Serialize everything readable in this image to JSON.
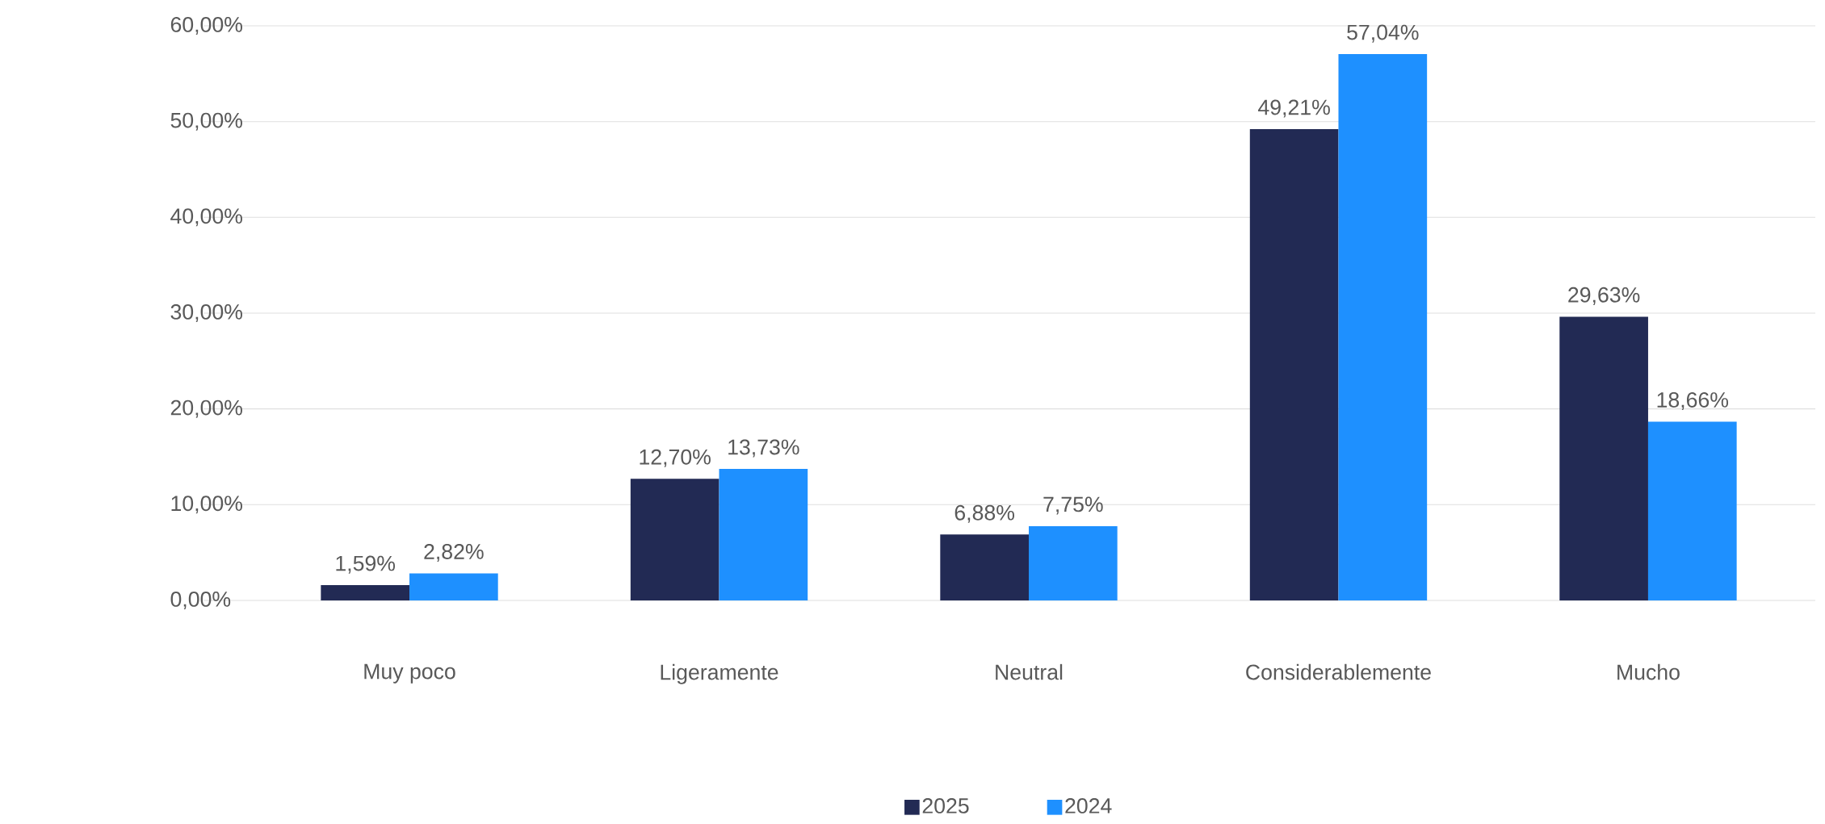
{
  "chart_data": {
    "type": "bar",
    "categories": [
      "Muy poco",
      "Ligeramente",
      "Neutral",
      "Considerablemente",
      "Mucho"
    ],
    "series": [
      {
        "name": "2025",
        "color": "#222a54",
        "values": [
          1.59,
          12.7,
          6.88,
          49.21,
          29.63
        ],
        "value_labels": [
          "1,59%",
          "12,70%",
          "6,88%",
          "49,21%",
          "29,63%"
        ]
      },
      {
        "name": "2024",
        "color": "#1e90ff",
        "values": [
          2.82,
          13.73,
          7.75,
          57.04,
          18.66
        ],
        "value_labels": [
          "2,82%",
          "13,73%",
          "7,75%",
          "57,04%",
          "18,66%"
        ]
      }
    ],
    "ylim": [
      0,
      60
    ],
    "yticks": [
      {
        "value": 0,
        "label": "0,00%"
      },
      {
        "value": 10,
        "label": "10,00%"
      },
      {
        "value": 20,
        "label": "20,00%"
      },
      {
        "value": 30,
        "label": "30,00%"
      },
      {
        "value": 40,
        "label": "40,00%"
      },
      {
        "value": 50,
        "label": "50,00%"
      },
      {
        "value": 60,
        "label": "60,00%"
      }
    ],
    "grid": "y",
    "legend": "bottom"
  }
}
